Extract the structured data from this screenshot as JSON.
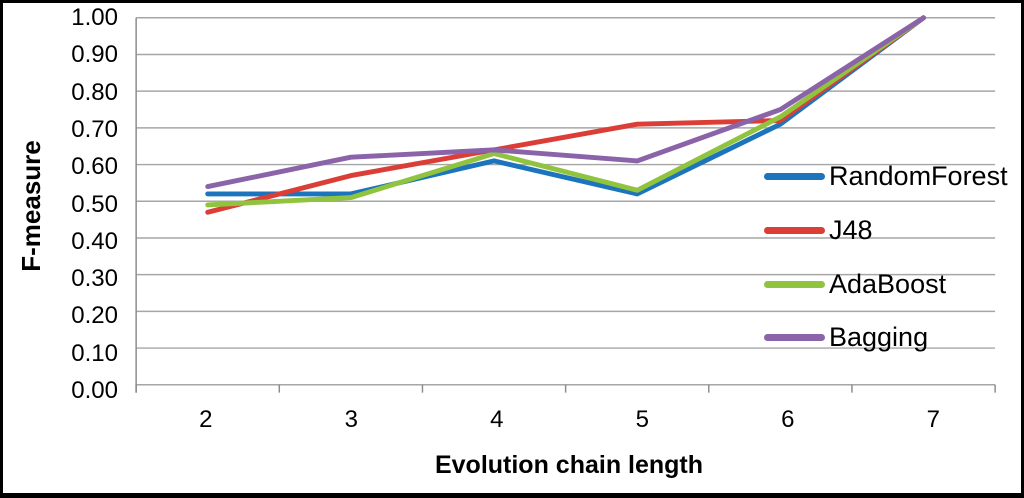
{
  "window": {
    "background_color": "#FFFFFF",
    "border_color": "#000000"
  },
  "chart_data": {
    "type": "line",
    "title": "",
    "xlabel": "Evolution chain length",
    "ylabel": "F-measure",
    "categories": [
      "2",
      "3",
      "4",
      "5",
      "6",
      "7"
    ],
    "series": [
      {
        "name": "RandomForest",
        "color": "#1C75BC",
        "values": [
          0.52,
          0.52,
          0.61,
          0.52,
          0.71,
          1.0
        ]
      },
      {
        "name": "J48",
        "color": "#DB3E36",
        "values": [
          0.47,
          0.57,
          0.64,
          0.71,
          0.72,
          1.0
        ]
      },
      {
        "name": "AdaBoost",
        "color": "#90C33E",
        "values": [
          0.49,
          0.51,
          0.63,
          0.53,
          0.73,
          1.0
        ]
      },
      {
        "name": "Bagging",
        "color": "#8A63A9",
        "values": [
          0.54,
          0.62,
          0.64,
          0.61,
          0.75,
          1.0
        ]
      }
    ],
    "ylim": [
      0,
      1
    ],
    "ytick_values": [
      0,
      0.1,
      0.2,
      0.3,
      0.4,
      0.5,
      0.6,
      0.7,
      0.8,
      0.9,
      1.0
    ],
    "ytick_labels": [
      "0.00",
      "0.10",
      "0.20",
      "0.30",
      "0.40",
      "0.50",
      "0.60",
      "0.70",
      "0.80",
      "0.90",
      "1.00"
    ],
    "grid": true,
    "legend_position": "inside-right",
    "gridline_color": "#A6A6A6",
    "axis_color": "#8C8C8C",
    "line_width": 5
  }
}
